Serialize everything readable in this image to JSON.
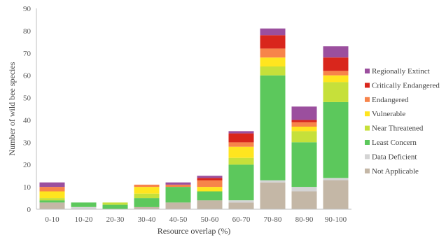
{
  "chart_data": {
    "type": "bar",
    "stacked": true,
    "xlabel": "Resource overlap (%)",
    "ylabel": "Number of wild bee species",
    "ylim": [
      0,
      90
    ],
    "yticks": [
      0,
      10,
      20,
      30,
      40,
      50,
      60,
      70,
      80,
      90
    ],
    "grid": false,
    "legend_position": "right",
    "categories": [
      "0-10",
      "10-20",
      "20-30",
      "30-40",
      "40-50",
      "50-60",
      "60-70",
      "70-80",
      "80-90",
      "90-100"
    ],
    "series": [
      {
        "name": "Not Applicable",
        "color": "#c4b7a6",
        "values": [
          3,
          0,
          0,
          1,
          3,
          4,
          3,
          12,
          8,
          13
        ]
      },
      {
        "name": "Data Deficient",
        "color": "#d4d4d4",
        "values": [
          0,
          1,
          0,
          0,
          0,
          0,
          1,
          1,
          2,
          1
        ]
      },
      {
        "name": "Least Concern",
        "color": "#5cc85c",
        "values": [
          1,
          2,
          2,
          4,
          7,
          4,
          16,
          47,
          20,
          34
        ]
      },
      {
        "name": "Near Threatened",
        "color": "#c6e03a",
        "values": [
          1,
          0,
          1,
          2,
          0,
          0,
          3,
          4,
          5,
          9
        ]
      },
      {
        "name": "Vulnerable",
        "color": "#ffe51f",
        "values": [
          3,
          0,
          0,
          3,
          0,
          2,
          5,
          4,
          2,
          3
        ]
      },
      {
        "name": "Endangered",
        "color": "#f7844a",
        "values": [
          2,
          0,
          0,
          1,
          1,
          3,
          2,
          4,
          2,
          2
        ]
      },
      {
        "name": "Critically Endangered",
        "color": "#d9261c",
        "values": [
          0,
          0,
          0,
          0,
          0,
          1,
          4,
          6,
          1,
          6
        ]
      },
      {
        "name": "Regionally Extinct",
        "color": "#9b4f9e",
        "values": [
          2,
          0,
          0,
          0,
          1,
          1,
          1,
          3,
          6,
          5
        ]
      }
    ]
  }
}
